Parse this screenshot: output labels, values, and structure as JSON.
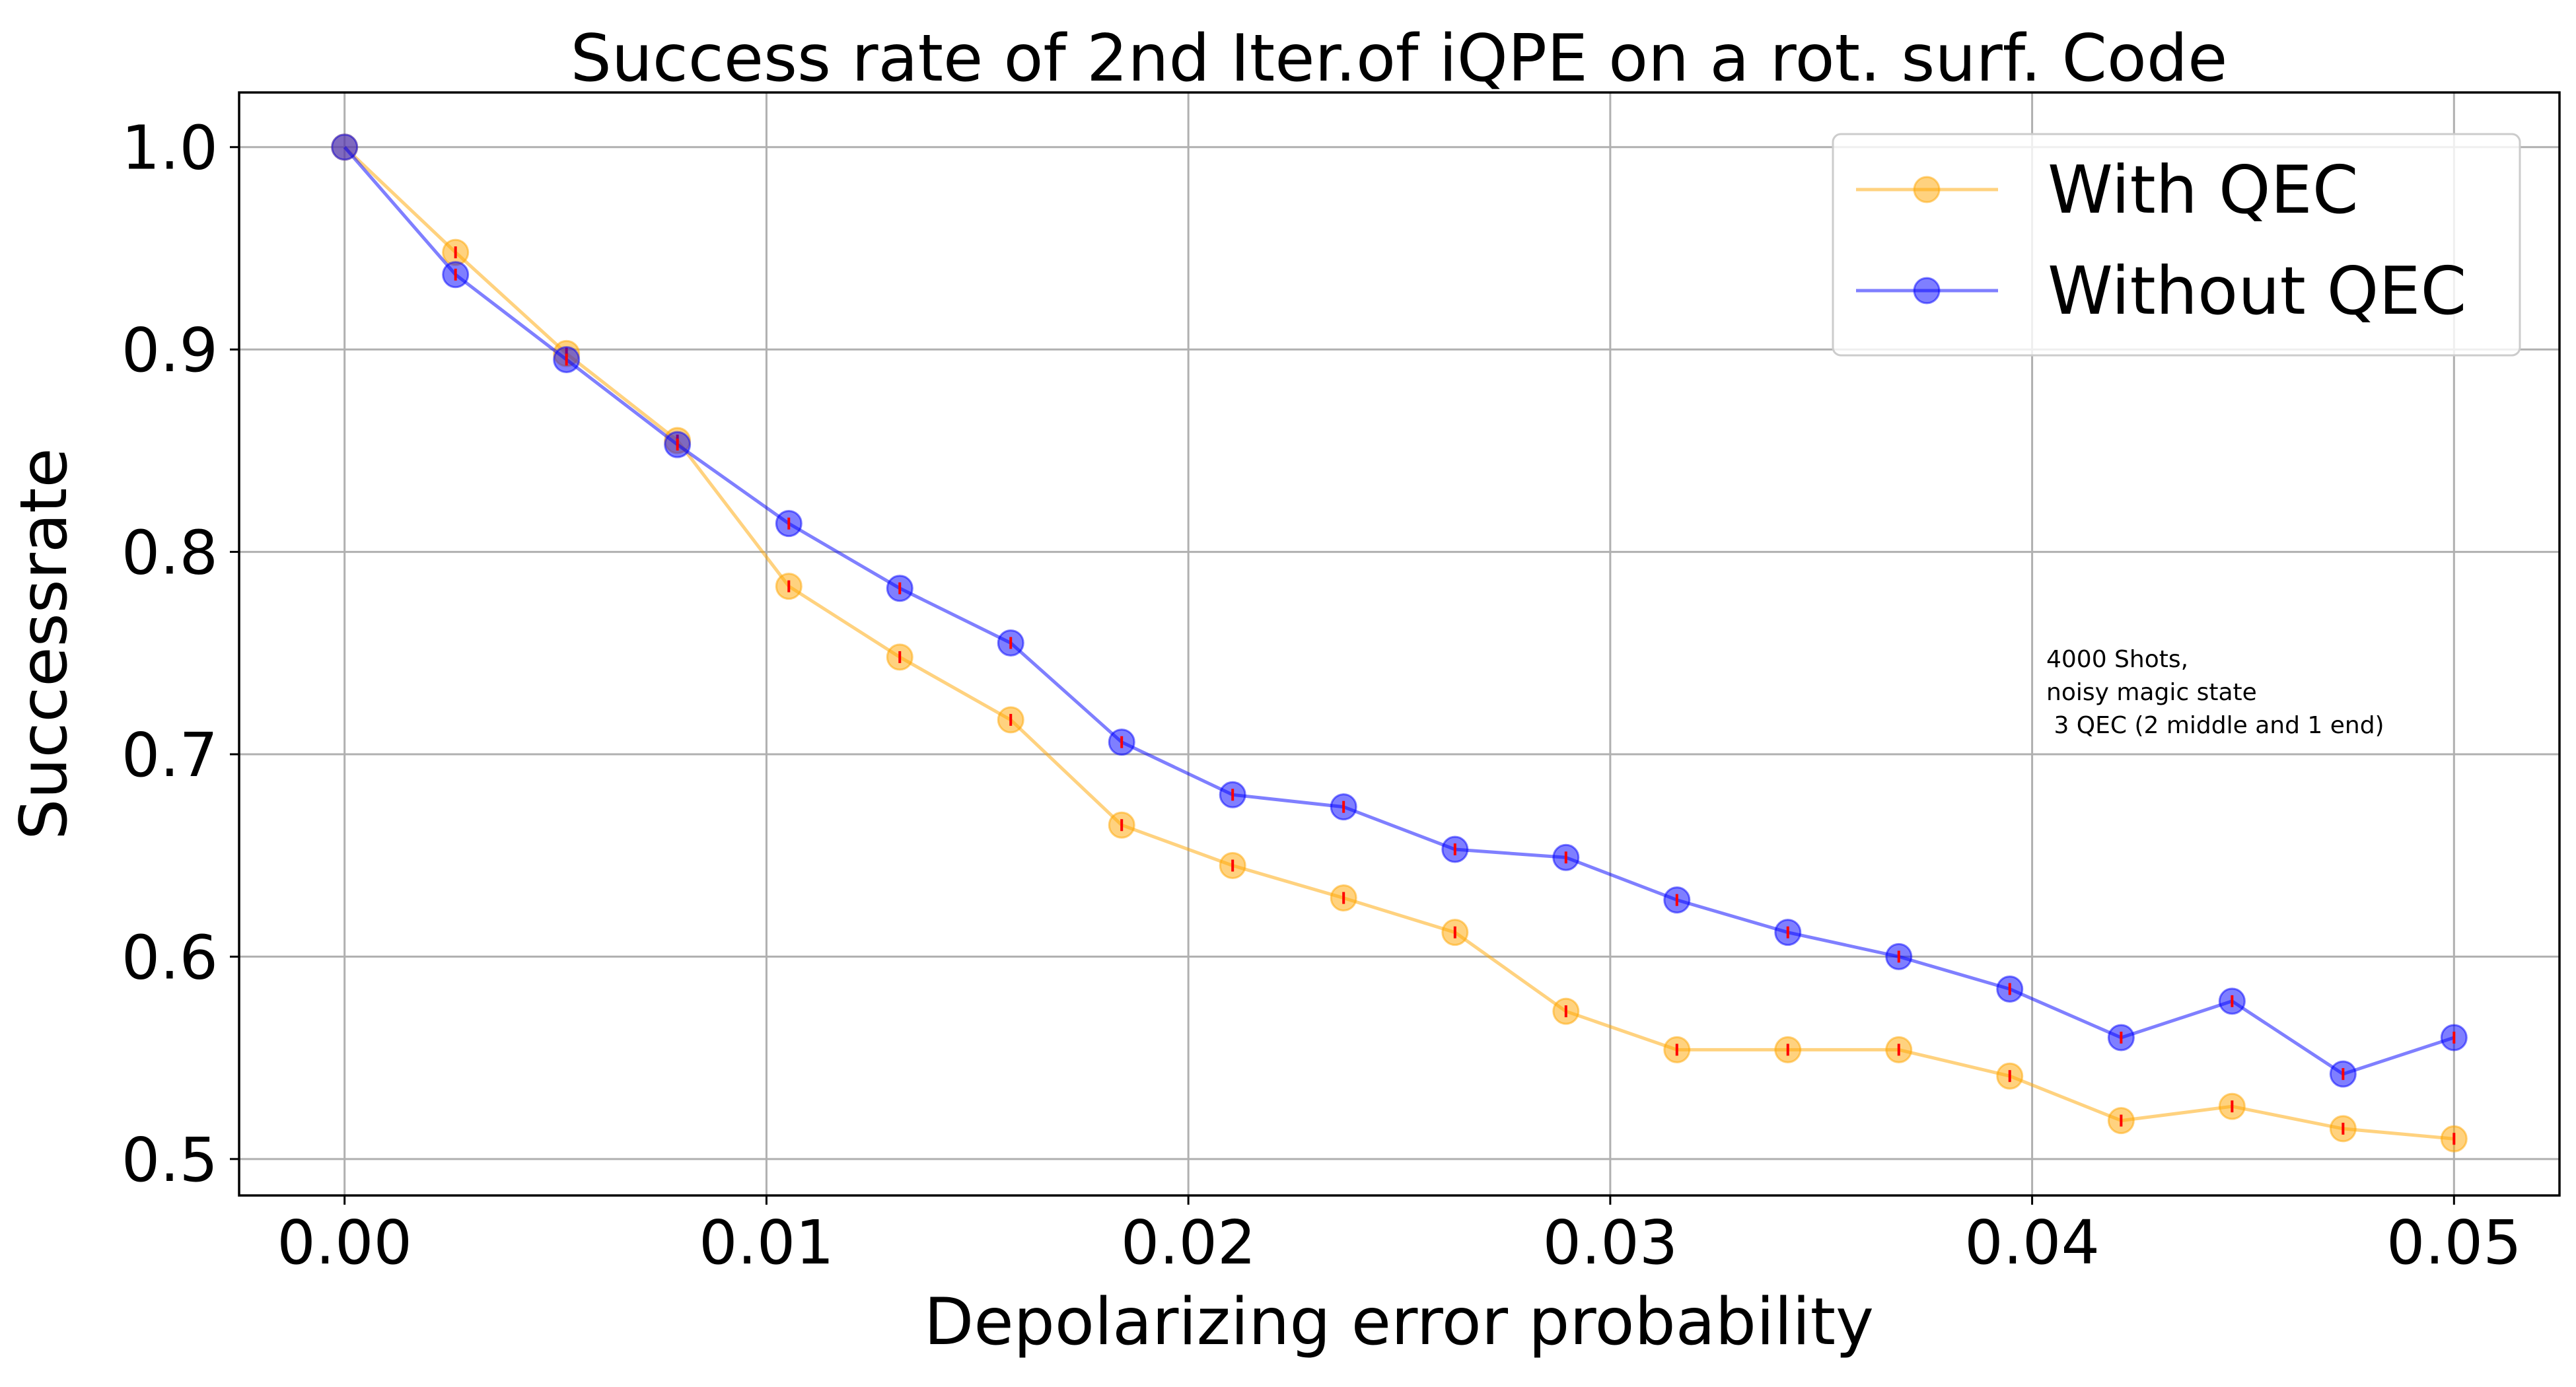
{
  "chart_data": {
    "type": "line",
    "title": "Success rate of 2nd Iter.of iQPE on a rot. surf. Code",
    "xlabel": "Depolarizing error probability",
    "ylabel": "Successrate",
    "xlim": [
      -0.0025,
      0.0525
    ],
    "ylim": [
      0.482,
      1.027
    ],
    "xticks": [
      0.0,
      0.01,
      0.02,
      0.03,
      0.04,
      0.05
    ],
    "xtick_labels": [
      "0.00",
      "0.01",
      "0.02",
      "0.03",
      "0.04",
      "0.05"
    ],
    "yticks": [
      0.5,
      0.6,
      0.7,
      0.8,
      0.9,
      1.0
    ],
    "ytick_labels": [
      "0.5",
      "0.6",
      "0.7",
      "0.8",
      "0.9",
      "1.0"
    ],
    "grid": true,
    "legend_position": "top-right",
    "x": [
      0.0,
      0.00263,
      0.00526,
      0.00789,
      0.01053,
      0.01316,
      0.01579,
      0.01842,
      0.02105,
      0.02368,
      0.02632,
      0.02895,
      0.03158,
      0.03421,
      0.03684,
      0.03947,
      0.04211,
      0.04474,
      0.04737,
      0.05
    ],
    "series": [
      {
        "name": "With QEC",
        "color": "#ffa500",
        "values": [
          1.0,
          0.948,
          0.898,
          0.855,
          0.783,
          0.748,
          0.717,
          0.665,
          0.645,
          0.629,
          0.612,
          0.573,
          0.554,
          0.554,
          0.554,
          0.541,
          0.519,
          0.526,
          0.515,
          0.51
        ]
      },
      {
        "name": "Without QEC",
        "color": "#0000ff",
        "values": [
          1.0,
          0.937,
          0.895,
          0.853,
          0.814,
          0.782,
          0.755,
          0.706,
          0.68,
          0.674,
          0.653,
          0.649,
          0.628,
          0.612,
          0.6,
          0.584,
          0.56,
          0.578,
          0.542,
          0.56
        ]
      }
    ],
    "error_bar_color": "#ff0000",
    "annotation": [
      "4000 Shots,",
      "noisy magic state",
      " 3 QEC (2 middle and 1 end)"
    ]
  }
}
